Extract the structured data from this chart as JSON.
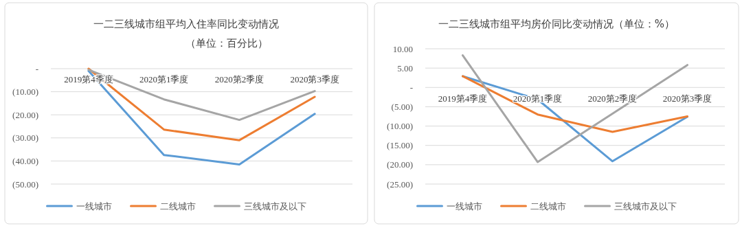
{
  "chart_data": [
    {
      "type": "line",
      "title": "一二三线城市组平均入住率同比变动情况",
      "subtitle": "（单位：百分比）",
      "categories": [
        "2019第4季度",
        "2020第1季度",
        "2020第2季度",
        "2020第3季度"
      ],
      "series": [
        {
          "name": "一线城市",
          "color": "#5b9bd5",
          "values": [
            -1,
            -37.4,
            -41.5,
            -19.6
          ]
        },
        {
          "name": "二线城市",
          "color": "#ed7d31",
          "values": [
            0,
            -26.4,
            -31,
            -12.2
          ]
        },
        {
          "name": "三线城市及以下",
          "color": "#a5a5a5",
          "values": [
            -0.5,
            -13.3,
            -22.2,
            -9.7
          ]
        }
      ],
      "ylim": [
        -50,
        0
      ],
      "yticks": [
        {
          "value": 0,
          "label": "-"
        },
        {
          "value": -10,
          "label": "(10.00)"
        },
        {
          "value": -20,
          "label": "(20.00)"
        },
        {
          "value": -30,
          "label": "(30.00)"
        },
        {
          "value": -40,
          "label": "(40.00)"
        },
        {
          "value": -50,
          "label": "(50.00)"
        }
      ],
      "grid": "y",
      "legend": "bottom"
    },
    {
      "type": "line",
      "title": "一二三线城市组平均房价同比变动情况（单位：%）",
      "categories": [
        "2019第4季度",
        "2020第1季度",
        "2020第2季度",
        "2020第3季度"
      ],
      "series": [
        {
          "name": "一线城市",
          "color": "#5b9bd5",
          "values": [
            2.9,
            -3.1,
            -19.1,
            -7.6
          ]
        },
        {
          "name": "二线城市",
          "color": "#ed7d31",
          "values": [
            2.9,
            -7.0,
            -11.5,
            -7.5
          ]
        },
        {
          "name": "三线城市及以下",
          "color": "#a5a5a5",
          "values": [
            8.3,
            -19.3,
            -6.8,
            5.8
          ]
        }
      ],
      "ylim": [
        -25,
        10
      ],
      "yticks": [
        {
          "value": 10,
          "label": "10.00"
        },
        {
          "value": 5,
          "label": "5.00"
        },
        {
          "value": 0,
          "label": "-"
        },
        {
          "value": -5,
          "label": "(5.00)"
        },
        {
          "value": -10,
          "label": "(10.00)"
        },
        {
          "value": -15,
          "label": "(15.00)"
        },
        {
          "value": -20,
          "label": "(20.00)"
        },
        {
          "value": -25,
          "label": "(25.00)"
        }
      ],
      "grid": "y",
      "legend": "bottom"
    }
  ]
}
